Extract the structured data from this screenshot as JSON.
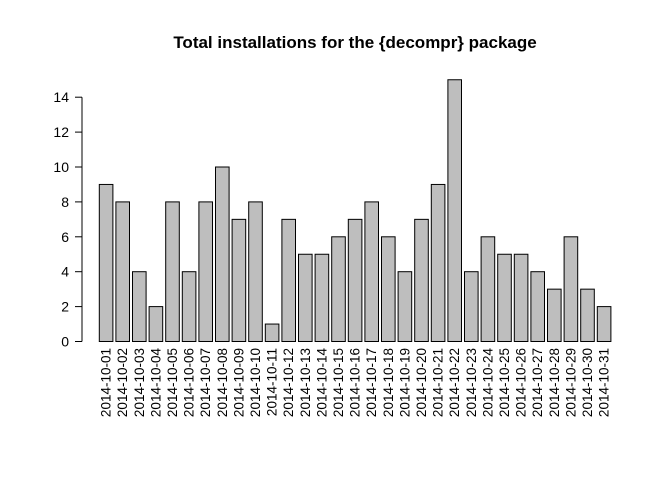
{
  "chart_data": {
    "type": "bar",
    "title": "Total installations for the {decompr} package",
    "xlabel": "",
    "ylabel": "",
    "ylim": [
      0,
      15
    ],
    "yticks": [
      0,
      2,
      4,
      6,
      8,
      10,
      12,
      14
    ],
    "grid": false,
    "bar_color": "#bebebe",
    "categories": [
      "2014-10-01",
      "2014-10-02",
      "2014-10-03",
      "2014-10-04",
      "2014-10-05",
      "2014-10-06",
      "2014-10-07",
      "2014-10-08",
      "2014-10-09",
      "2014-10-10",
      "2014-10-11",
      "2014-10-12",
      "2014-10-13",
      "2014-10-14",
      "2014-10-15",
      "2014-10-16",
      "2014-10-17",
      "2014-10-18",
      "2014-10-19",
      "2014-10-20",
      "2014-10-21",
      "2014-10-22",
      "2014-10-23",
      "2014-10-24",
      "2014-10-25",
      "2014-10-26",
      "2014-10-27",
      "2014-10-28",
      "2014-10-29",
      "2014-10-30",
      "2014-10-31"
    ],
    "values": [
      9,
      8,
      4,
      2,
      8,
      4,
      8,
      10,
      7,
      8,
      1,
      7,
      5,
      5,
      6,
      7,
      8,
      6,
      4,
      7,
      9,
      15,
      4,
      6,
      5,
      5,
      4,
      3,
      6,
      3,
      2
    ]
  }
}
